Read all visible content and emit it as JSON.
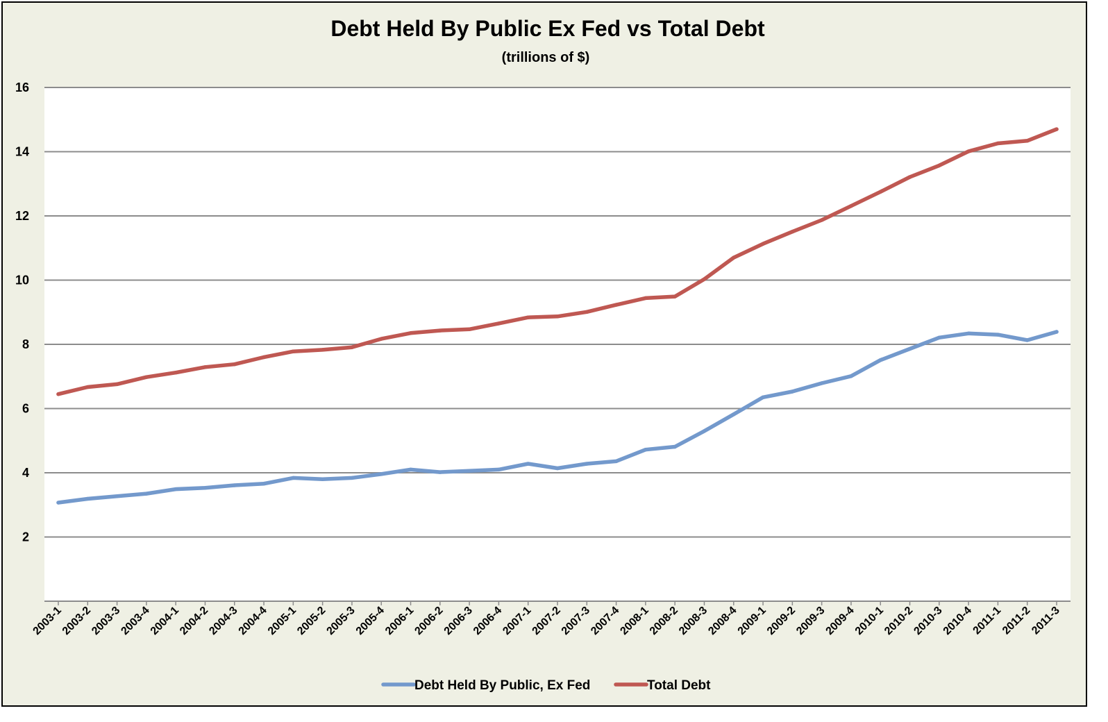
{
  "chart_data": {
    "type": "line",
    "title": "Debt Held By Public Ex Fed vs Total Debt",
    "subtitle": "(trillions of $)",
    "xlabel": "",
    "ylabel": "",
    "ylim": [
      0,
      16
    ],
    "yticks": [
      "2",
      "4",
      "6",
      "8",
      "10",
      "12",
      "14",
      "16"
    ],
    "grid": true,
    "legend_position": "bottom",
    "categories": [
      "2003-1",
      "2003-2",
      "2003-3",
      "2003-4",
      "2004-1",
      "2004-2",
      "2004-3",
      "2004-4",
      "2005-1",
      "2005-2",
      "2005-3",
      "2005-4",
      "2006-1",
      "2006-2",
      "2006-3",
      "2006-4",
      "2007-1",
      "2007-2",
      "2007-3",
      "2007-4",
      "2008-1",
      "2008-2",
      "2008-3",
      "2008-4",
      "2009-1",
      "2009-2",
      "2009-3",
      "2009-4",
      "2010-1",
      "2010-2",
      "2010-3",
      "2010-4",
      "2011-1",
      "2011-2",
      "2011-3"
    ],
    "series": [
      {
        "name": "Debt Held By Public, Ex Fed",
        "color": "#7399cc",
        "values": [
          3.07,
          3.19,
          3.27,
          3.35,
          3.49,
          3.53,
          3.61,
          3.66,
          3.84,
          3.8,
          3.84,
          3.96,
          4.1,
          4.02,
          4.06,
          4.1,
          4.28,
          4.14,
          4.28,
          4.36,
          4.72,
          4.81,
          5.3,
          5.82,
          6.35,
          6.53,
          6.79,
          7.01,
          7.51,
          7.86,
          8.21,
          8.34,
          8.3,
          8.13,
          8.39
        ]
      },
      {
        "name": "Total Debt",
        "color": "#bf5852",
        "values": [
          6.45,
          6.67,
          6.76,
          6.98,
          7.12,
          7.29,
          7.38,
          7.6,
          7.78,
          7.83,
          7.91,
          8.17,
          8.35,
          8.43,
          8.47,
          8.65,
          8.84,
          8.87,
          9.01,
          9.23,
          9.44,
          9.49,
          10.03,
          10.7,
          11.13,
          11.51,
          11.87,
          12.31,
          12.75,
          13.21,
          13.57,
          14.01,
          14.26,
          14.34,
          14.7
        ]
      }
    ]
  }
}
